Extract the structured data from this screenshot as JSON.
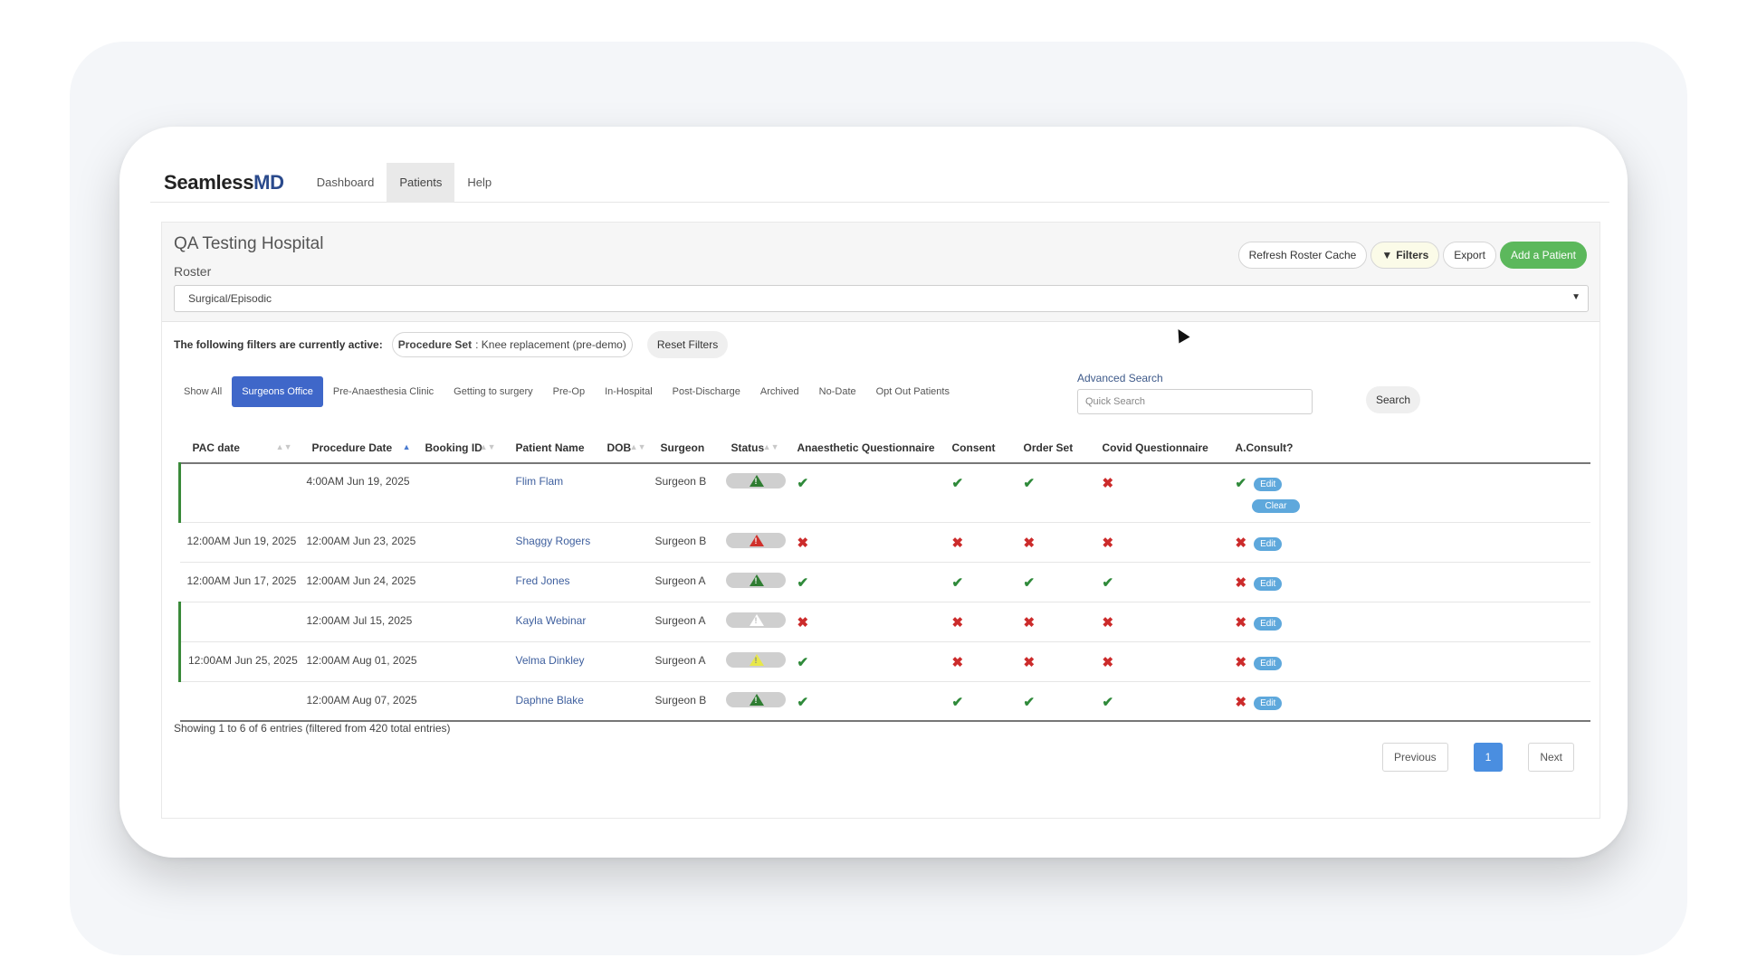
{
  "app": {
    "logo_main": "Seamless",
    "logo_accent": "MD"
  },
  "nav": {
    "items": [
      "Dashboard",
      "Patients",
      "Help"
    ],
    "active": "Patients"
  },
  "header": {
    "hospital": "QA Testing Hospital",
    "roster_label": "Roster",
    "roster_value": "Surgical/Episodic",
    "buttons": {
      "refresh": "Refresh Roster Cache",
      "filters": "Filters",
      "export": "Export",
      "add": "Add a Patient"
    }
  },
  "filters": {
    "label": "The following filters are currently active:",
    "chip_key": "Procedure Set",
    "chip_value": ": Knee replacement (pre-demo)",
    "reset": "Reset Filters"
  },
  "tabs": [
    "Show All",
    "Surgeons Office",
    "Pre-Anaesthesia Clinic",
    "Getting to surgery",
    "Pre-Op",
    "In-Hospital",
    "Post-Discharge",
    "Archived",
    "No-Date",
    "Opt Out Patients"
  ],
  "search": {
    "advanced_label": "Advanced Search",
    "placeholder": "Quick Search",
    "button": "Search"
  },
  "table": {
    "columns": [
      "PAC date",
      "Procedure Date",
      "Booking ID",
      "Patient Name",
      "DOB",
      "Surgeon",
      "Status",
      "Anaesthetic Questionnaire",
      "Consent",
      "Order Set",
      "Covid Questionnaire",
      "A.Consult?"
    ],
    "edit_label": "Edit",
    "clear_label": "Clear",
    "rows": [
      {
        "pac": "",
        "proc": "4:00AM Jun 19, 2025",
        "booking": "",
        "name": "Flim Flam",
        "dob": "",
        "surgeon": "Surgeon B",
        "status": "green",
        "aq": "check",
        "consent": "check",
        "order": "check",
        "covid": "cross",
        "consult": "check",
        "flag": true
      },
      {
        "pac": "12:00AM Jun 19, 2025",
        "proc": "12:00AM Jun 23, 2025",
        "booking": "",
        "name": "Shaggy Rogers",
        "dob": "",
        "surgeon": "Surgeon B",
        "status": "red",
        "aq": "cross",
        "consent": "cross",
        "order": "cross",
        "covid": "cross",
        "consult": "cross",
        "flag": false
      },
      {
        "pac": "12:00AM Jun 17, 2025",
        "proc": "12:00AM Jun 24, 2025",
        "booking": "",
        "name": "Fred Jones",
        "dob": "",
        "surgeon": "Surgeon A",
        "status": "green",
        "aq": "check",
        "consent": "check",
        "order": "check",
        "covid": "check",
        "consult": "cross",
        "flag": false
      },
      {
        "pac": "",
        "proc": "12:00AM Jul 15, 2025",
        "booking": "",
        "name": "Kayla Webinar",
        "dob": "",
        "surgeon": "Surgeon A",
        "status": "white",
        "aq": "cross",
        "consent": "cross",
        "order": "cross",
        "covid": "cross",
        "consult": "cross",
        "flag": true
      },
      {
        "pac": "12:00AM Jun 25, 2025",
        "proc": "12:00AM Aug 01, 2025",
        "booking": "",
        "name": "Velma Dinkley",
        "dob": "",
        "surgeon": "Surgeon A",
        "status": "yellow",
        "aq": "check",
        "consent": "cross",
        "order": "cross",
        "covid": "cross",
        "consult": "cross",
        "flag": true
      },
      {
        "pac": "",
        "proc": "12:00AM Aug 07, 2025",
        "booking": "",
        "name": "Daphne Blake",
        "dob": "",
        "surgeon": "Surgeon B",
        "status": "green",
        "aq": "check",
        "consent": "check",
        "order": "check",
        "covid": "check",
        "consult": "cross",
        "flag": false
      }
    ]
  },
  "footer": {
    "info": "Showing 1 to 6 of 6 entries (filtered from 420 total entries)",
    "prev": "Previous",
    "page": "1",
    "next": "Next"
  }
}
